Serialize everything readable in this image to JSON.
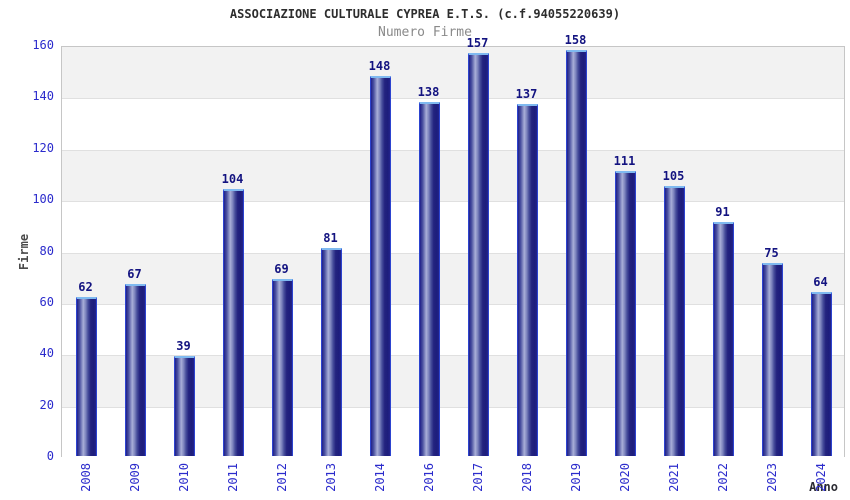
{
  "header": {
    "title": "ASSOCIAZIONE CULTURALE CYPREA E.T.S. (c.f.94055220639)",
    "subtitle": "Numero Firme"
  },
  "chart_data": {
    "type": "bar",
    "title": "ASSOCIAZIONE CULTURALE CYPREA E.T.S. (c.f.94055220639)",
    "subtitle": "Numero Firme",
    "categories": [
      "2008",
      "2009",
      "2010",
      "2011",
      "2012",
      "2013",
      "2014",
      "2016",
      "2017",
      "2018",
      "2019",
      "2020",
      "2021",
      "2022",
      "2023",
      "2024"
    ],
    "values": [
      62,
      67,
      39,
      104,
      69,
      81,
      148,
      138,
      157,
      137,
      158,
      111,
      105,
      91,
      75,
      64
    ],
    "xlabel": "Anno",
    "ylabel": "Firme",
    "ylim": [
      0,
      160
    ],
    "ytick_step": 20,
    "grid": "horizontal alternating bands, gray above even gridlines",
    "legend": "none",
    "data_labels": "value above each bar",
    "colors": {
      "bar_border": "#2c43cf",
      "bar_cap": "#7fb9f0",
      "bar_dark": "#20208a",
      "bar_highlight": "#a8aed8",
      "tick_label": "#2b2bcc",
      "value_label": "#131380",
      "band_gray": "#f2f2f2",
      "band_white": "#ffffff",
      "grid_line": "#e0e0e0",
      "plot_border": "#c6c6c6",
      "title_color": "#2d2d2d",
      "subtitle_color": "#8a8a8a",
      "axis_title_color": "#4a4a4a"
    }
  }
}
